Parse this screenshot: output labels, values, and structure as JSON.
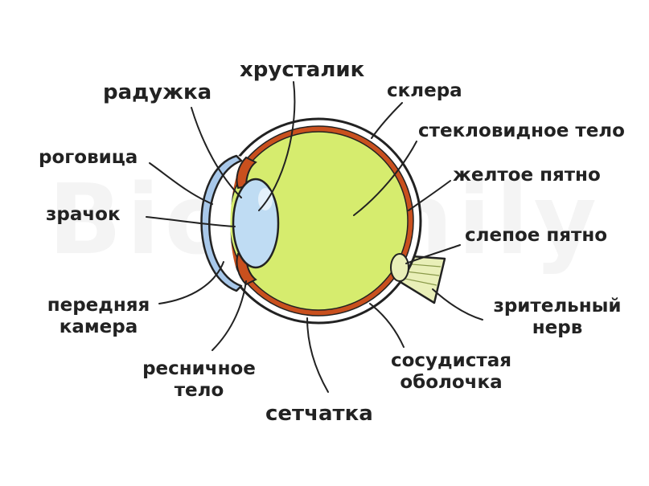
{
  "watermark": "Biofamily",
  "labels": {
    "lens": "хрусталик",
    "iris": "радужка",
    "sclera": "склера",
    "vitreous": "стекловидное тело",
    "cornea": "роговица",
    "macula": "желтое пятно",
    "pupil": "зрачок",
    "blind_spot": "слепое пятно",
    "anterior_chamber": [
      "передняя",
      "камера"
    ],
    "optic_nerve": [
      "зрительный",
      "нерв"
    ],
    "ciliary_body": [
      "ресничное",
      "тело"
    ],
    "choroid": [
      "сосудистая",
      "оболочка"
    ],
    "retina": "сетчатка"
  },
  "colors": {
    "sclera": "#ffffff",
    "choroid": "#c9501e",
    "vitreous": "#d6ec6e",
    "cornea": "#a8c8ea",
    "lens": "#bfdcf3",
    "nerve": "#e9efb8",
    "line": "#222222"
  }
}
